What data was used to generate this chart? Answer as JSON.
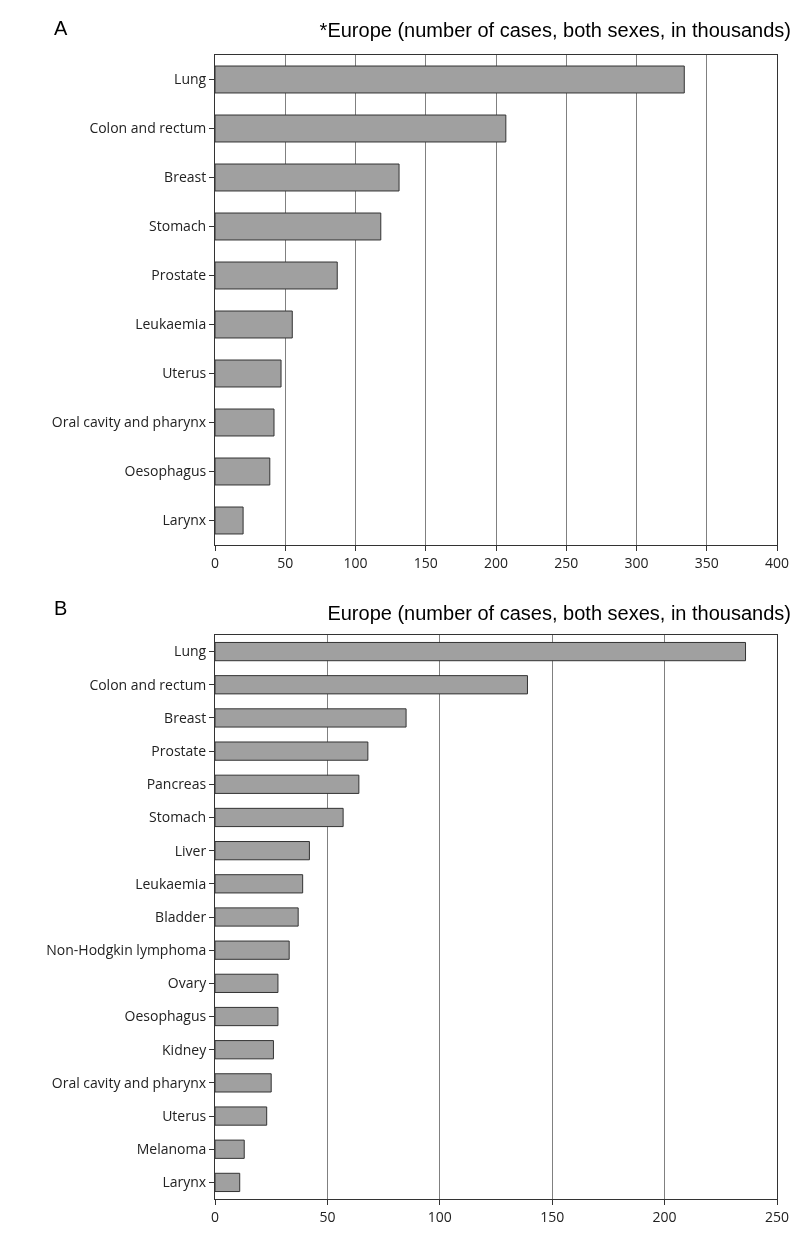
{
  "chart_data": [
    {
      "type": "bar",
      "orientation": "horizontal",
      "title": "*Europe (number of cases, both sexes, in thousands)",
      "annotations": [
        "A"
      ],
      "categories": [
        "Lung",
        "Colon and rectum",
        "Breast",
        "Stomach",
        "Prostate",
        "Leukaemia",
        "Uterus",
        "Oral cavity and pharynx",
        "Oesophagus",
        "Larynx"
      ],
      "values": [
        334,
        207,
        131,
        118,
        87,
        55,
        47,
        42,
        39,
        20
      ],
      "color": "#a0a0a0",
      "xlim": [
        0,
        400
      ],
      "xticks": [
        0,
        50,
        100,
        150,
        200,
        250,
        300,
        350,
        400
      ],
      "grid": "x"
    },
    {
      "type": "bar",
      "orientation": "horizontal",
      "title": "Europe (number of cases, both sexes, in thousands)",
      "annotations": [
        "B"
      ],
      "categories": [
        "Lung",
        "Colon and rectum",
        "Breast",
        "Prostate",
        "Pancreas",
        "Stomach",
        "Liver",
        "Leukaemia",
        "Bladder",
        "Non-Hodgkin lymphoma",
        "Ovary",
        "Oesophagus",
        "Kidney",
        "Oral cavity and pharynx",
        "Uterus",
        "Melanoma",
        "Larynx"
      ],
      "values": [
        236,
        139,
        85,
        68,
        64,
        57,
        42,
        39,
        37,
        33,
        28,
        28,
        26,
        25,
        23,
        13,
        11
      ],
      "color": "#a0a0a0",
      "xlim": [
        0,
        250
      ],
      "xticks": [
        0,
        50,
        100,
        150,
        200,
        250
      ],
      "grid": "x"
    }
  ]
}
